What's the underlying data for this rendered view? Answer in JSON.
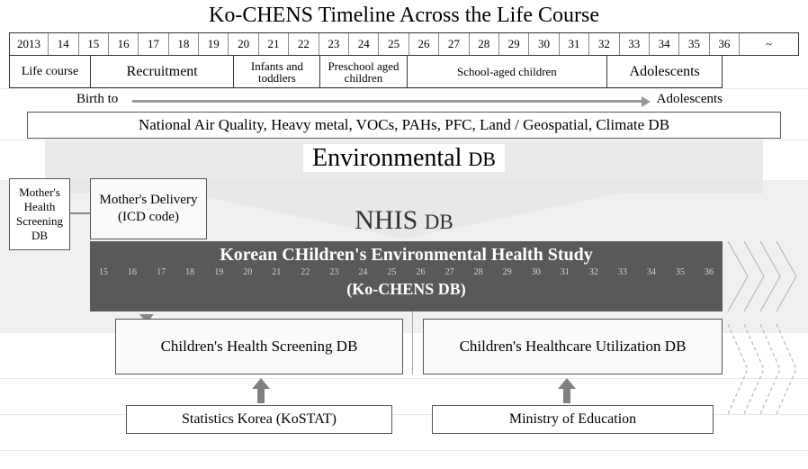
{
  "title": "Ko-CHENS Timeline Across the Life Course",
  "timeline": {
    "years": [
      "2013",
      "14",
      "15",
      "16",
      "17",
      "18",
      "19",
      "20",
      "21",
      "22",
      "23",
      "24",
      "25",
      "26",
      "27",
      "28",
      "29",
      "30",
      "31",
      "32",
      "33",
      "34",
      "35",
      "36",
      "~"
    ]
  },
  "life_course": {
    "label": "Life course",
    "stages": [
      {
        "label": "Recruitment",
        "span_years": 5
      },
      {
        "label": "Infants and toddlers",
        "span_years": 3
      },
      {
        "label": "Preschool aged children",
        "span_years": 3
      },
      {
        "label": "School-aged children",
        "span_years": 7
      },
      {
        "label": "Adolescents",
        "span_years": 4
      }
    ]
  },
  "birth_line": {
    "left": "Birth to",
    "right": "Adolescents"
  },
  "environmental": {
    "content": "National Air Quality, Heavy metal, VOCs, PAHs, PFC, Land / Geospatial, Climate DB",
    "heading_main": "Environmental ",
    "heading_sub": "DB"
  },
  "nhis": {
    "heading_main": "NHIS ",
    "heading_sub": "DB"
  },
  "mother_screen": "Mother's Health Screening DB",
  "mother_delivery": "Mother's Delivery (ICD code)",
  "ko_chens": {
    "title": "Korean CHildren's Environmental Health Study",
    "subtitle": "(Ko-CHENS DB)",
    "years": [
      "15",
      "16",
      "17",
      "18",
      "19",
      "20",
      "21",
      "22",
      "23",
      "24",
      "25",
      "26",
      "27",
      "28",
      "29",
      "30",
      "31",
      "32",
      "33",
      "34",
      "35",
      "36"
    ]
  },
  "child_screen": "Children's Health Screening  DB",
  "child_util": "Children's Healthcare Utilization DB",
  "kostat": "Statistics Korea (KoSTAT)",
  "moe": "Ministry of Education",
  "colors": {
    "dark_bar": "#595959",
    "arrow_gray": "#999999",
    "chevron_gray": "#b0b0b0",
    "border": "#333333",
    "light_bg": "#fafafa"
  }
}
